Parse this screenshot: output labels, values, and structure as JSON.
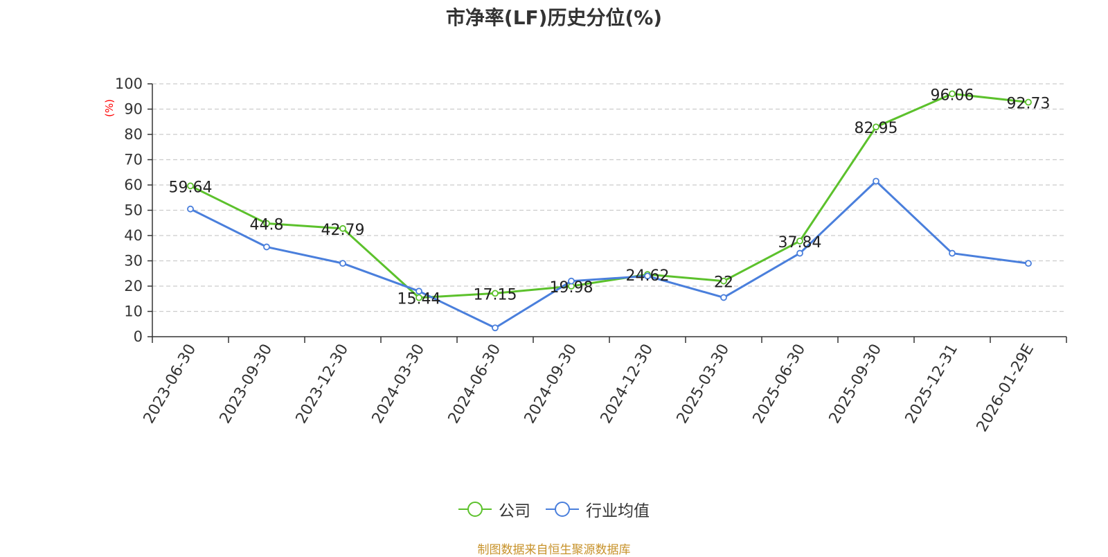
{
  "title": "市净率(LF)历史分位(%)",
  "source_note": "制图数据来自恒生聚源数据库",
  "colors": {
    "company": "#5cc12c",
    "industry": "#4a7fdc",
    "axis": "#333333",
    "grid": "#cccccc",
    "ylabel": "#ff0000"
  },
  "chart_data": {
    "type": "line",
    "title": "市净率(LF)历史分位(%)",
    "xlabel": "",
    "ylabel": "(%)",
    "ylim": [
      0,
      100
    ],
    "yticks": [
      0,
      10,
      20,
      30,
      40,
      50,
      60,
      70,
      80,
      90,
      100
    ],
    "grid": true,
    "legend_position": "bottom",
    "categories": [
      "2023-06-30",
      "2023-09-30",
      "2023-12-30",
      "2024-03-30",
      "2024-06-30",
      "2024-09-30",
      "2024-12-30",
      "2025-03-30",
      "2025-06-30",
      "2025-09-30",
      "2025-12-31",
      "2026-01-29E"
    ],
    "series": [
      {
        "name": "公司",
        "values": [
          59.64,
          44.8,
          42.79,
          15.44,
          17.15,
          19.98,
          24.62,
          22,
          37.84,
          82.95,
          96.06,
          92.73
        ],
        "labels": [
          "59.64",
          "44.8",
          "42.79",
          "15.44",
          "17.15",
          "19.98",
          "24.62",
          "22",
          "37.84",
          "82.95",
          "96.06",
          "92.73"
        ]
      },
      {
        "name": "行业均值",
        "values": [
          50.5,
          35.5,
          29,
          18,
          3.5,
          22,
          24,
          15.5,
          33,
          61.5,
          33,
          29
        ]
      }
    ]
  }
}
